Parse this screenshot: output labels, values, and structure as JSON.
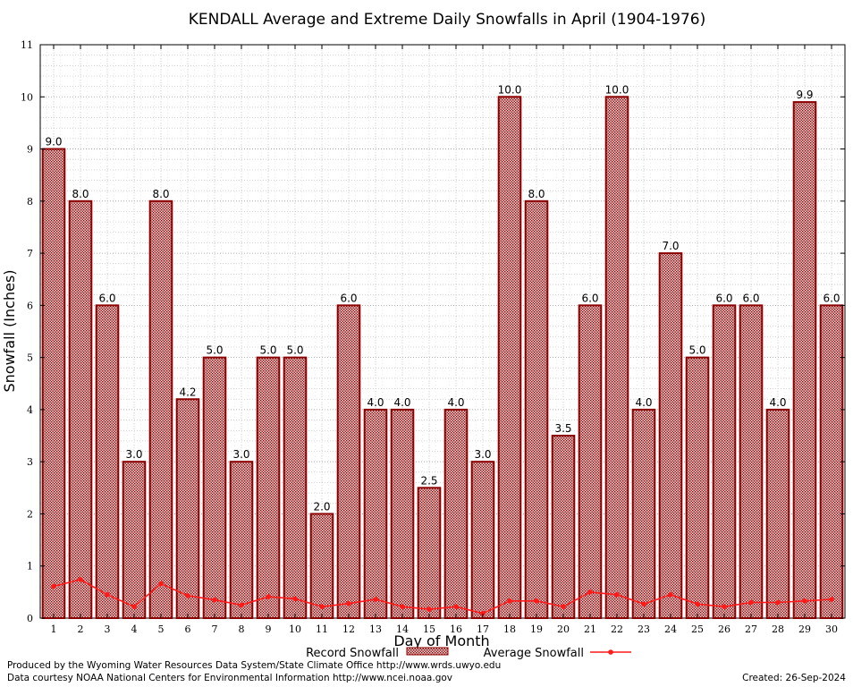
{
  "chart_data": {
    "type": "bar",
    "title": "KENDALL Average and Extreme Daily Snowfalls in April (1904-1976)",
    "xlabel": "Day of Month",
    "ylabel": "Snowfall (Inches)",
    "ylim": [
      0,
      11
    ],
    "y_ticks": [
      "0",
      "1",
      "2",
      "3",
      "4",
      "5",
      "6",
      "7",
      "8",
      "9",
      "10",
      "11"
    ],
    "grid": true,
    "categories": [
      "1",
      "2",
      "3",
      "4",
      "5",
      "6",
      "7",
      "8",
      "9",
      "10",
      "11",
      "12",
      "13",
      "14",
      "15",
      "16",
      "17",
      "18",
      "19",
      "20",
      "21",
      "22",
      "23",
      "24",
      "25",
      "26",
      "27",
      "28",
      "29",
      "30"
    ],
    "series": [
      {
        "name": "Record Snowfall",
        "kind": "bar",
        "color": "#8b0000",
        "values": [
          9.0,
          8.0,
          6.0,
          3.0,
          8.0,
          4.2,
          5.0,
          3.0,
          5.0,
          5.0,
          2.0,
          6.0,
          4.0,
          4.0,
          2.5,
          4.0,
          3.0,
          10.0,
          8.0,
          3.5,
          6.0,
          10.0,
          4.0,
          7.0,
          5.0,
          6.0,
          6.0,
          4.0,
          9.9,
          6.0
        ],
        "labels": [
          "9.0",
          "8.0",
          "6.0",
          "3.0",
          "8.0",
          "4.2",
          "5.0",
          "3.0",
          "5.0",
          "5.0",
          "2.0",
          "6.0",
          "4.0",
          "4.0",
          "2.5",
          "4.0",
          "3.0",
          "10.0",
          "8.0",
          "3.5",
          "6.0",
          "10.0",
          "4.0",
          "7.0",
          "5.0",
          "6.0",
          "6.0",
          "4.0",
          "9.9",
          "6.0"
        ]
      },
      {
        "name": "Average Snowfall",
        "kind": "line",
        "color": "#ff1a1a",
        "values": [
          0.61,
          0.74,
          0.45,
          0.22,
          0.66,
          0.43,
          0.35,
          0.25,
          0.41,
          0.37,
          0.22,
          0.28,
          0.36,
          0.22,
          0.17,
          0.22,
          0.09,
          0.33,
          0.33,
          0.22,
          0.5,
          0.45,
          0.27,
          0.45,
          0.27,
          0.22,
          0.3,
          0.3,
          0.33,
          0.36
        ]
      }
    ],
    "legend": {
      "position": "bottom",
      "record_label": "Record Snowfall",
      "average_label": "Average Snowfall"
    }
  },
  "footer": {
    "produced_by": "Produced by the Wyoming Water Resources Data System/State Climate Office http://www.wrds.uwyo.edu",
    "courtesy": "Data courtesy NOAA National Centers for Environmental Information http://www.ncei.noaa.gov",
    "created": "Created:  26-Sep-2024"
  }
}
